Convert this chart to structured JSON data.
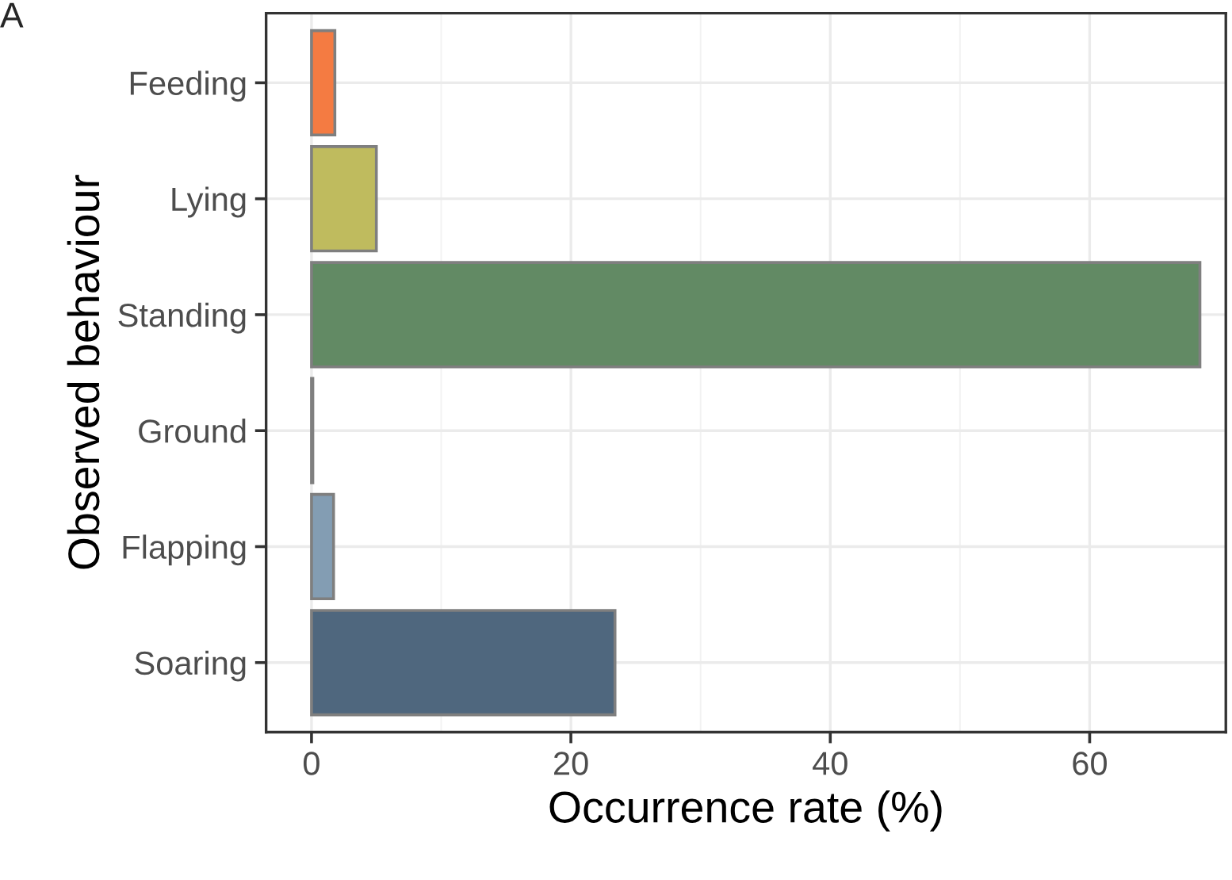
{
  "chart_data": {
    "type": "bar",
    "orientation": "horizontal",
    "xlabel": "Occurrence rate (%)",
    "ylabel": "Observed behaviour",
    "annotations": [
      "A"
    ],
    "categories": [
      "Feeding",
      "Lying",
      "Standing",
      "Ground",
      "Flapping",
      "Soaring"
    ],
    "values": [
      1.8,
      5.0,
      68.5,
      0.1,
      1.7,
      23.4
    ],
    "colors": [
      "#f47b42",
      "#bfbb5e",
      "#628a64",
      "#8a8a8a",
      "#839db3",
      "#4f677e"
    ],
    "xlim": [
      -3.5,
      70.5
    ],
    "xticks": [
      0,
      20,
      40,
      60
    ],
    "grid": true
  }
}
